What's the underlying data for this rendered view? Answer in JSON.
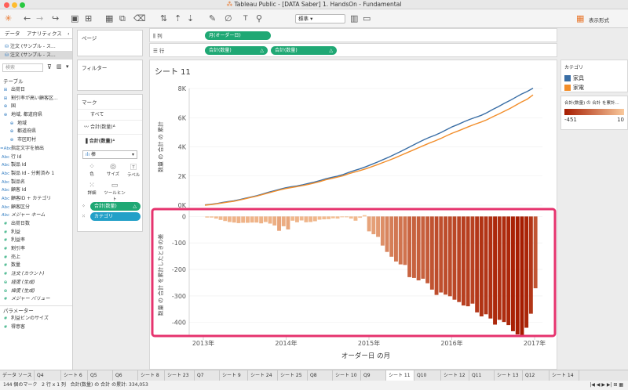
{
  "window": {
    "title": "Tableau Public - [DATA Saber] 1. HandsOn - Fundamental"
  },
  "toolbar": {
    "standard_select": "標準",
    "show_me": "表示形式"
  },
  "left_panel": {
    "tab_data": "データ",
    "tab_analytics": "アナリティクス",
    "datasources": [
      "注文 (サンプル - ス...",
      "注文 (サンプル - ス..."
    ],
    "search_placeholder": "検索",
    "tables_header": "テーブル",
    "fields": [
      {
        "icon": "⊞",
        "label": "出荷日",
        "type": "dim"
      },
      {
        "icon": "⊞",
        "label": "割引率が高い顧客区...",
        "type": "dim"
      },
      {
        "icon": "⊕",
        "label": "国",
        "type": "dim"
      },
      {
        "icon": "⊕",
        "label": "地域, 都道府県",
        "type": "dim"
      },
      {
        "icon": "⊕",
        "label": "地域",
        "type": "dim",
        "indent": true
      },
      {
        "icon": "⊕",
        "label": "都道府県",
        "type": "dim",
        "indent": true
      },
      {
        "icon": "⊕",
        "label": "市区町村",
        "type": "dim",
        "indent": true
      },
      {
        "icon": "=Abc",
        "label": "指定文字を抽出",
        "type": "dim"
      },
      {
        "icon": "Abc",
        "label": "行 Id",
        "type": "dim"
      },
      {
        "icon": "Abc",
        "label": "製品 Id",
        "type": "dim"
      },
      {
        "icon": "Abc",
        "label": "製品 Id - 分割済み 1",
        "type": "dim"
      },
      {
        "icon": "Abc",
        "label": "製品名",
        "type": "dim"
      },
      {
        "icon": "Abc",
        "label": "顧客 Id",
        "type": "dim"
      },
      {
        "icon": "Abc",
        "label": "顧客ID + カテゴリ",
        "type": "dim"
      },
      {
        "icon": "Abc",
        "label": "顧客区分",
        "type": "dim"
      },
      {
        "icon": "Abc",
        "label": "メジャー ネーム",
        "type": "dim",
        "italic": true
      },
      {
        "icon": "#",
        "label": "出荷日数",
        "type": "mea"
      },
      {
        "icon": "#",
        "label": "利益",
        "type": "mea"
      },
      {
        "icon": "#",
        "label": "利益率",
        "type": "mea"
      },
      {
        "icon": "#",
        "label": "割引率",
        "type": "mea"
      },
      {
        "icon": "#",
        "label": "売上",
        "type": "mea"
      },
      {
        "icon": "#",
        "label": "数量",
        "type": "mea"
      },
      {
        "icon": "#",
        "label": "注文 (カウント)",
        "type": "mea",
        "italic": true
      },
      {
        "icon": "⊕",
        "label": "経度 (生成)",
        "type": "mea",
        "italic": true
      },
      {
        "icon": "⊕",
        "label": "緯度 (生成)",
        "type": "mea",
        "italic": true
      },
      {
        "icon": "#",
        "label": "メジャー バリュー",
        "type": "mea",
        "italic": true
      }
    ],
    "params_header": "パラメーター",
    "params": [
      {
        "icon": "#",
        "label": "利益ビンのサイズ"
      },
      {
        "icon": "#",
        "label": "得意客"
      }
    ]
  },
  "mid_panel": {
    "pages": "ページ",
    "filters": "フィルター",
    "marks": "マーク",
    "marks_all": "すべて",
    "marks_sum1": "合計(数量)",
    "marks_sum2": "合計(数量)",
    "mark_type": "棒",
    "btn_color": "色",
    "btn_size": "サイズ",
    "btn_label": "ラベル",
    "btn_detail": "詳細",
    "btn_tooltip": "ツールヒント",
    "pill_sum": "合計(数量)",
    "pill_cat": "カテゴリ"
  },
  "shelves": {
    "columns_label": "列",
    "rows_label": "行",
    "columns_pill": "月(オーダー日)",
    "rows_pill1": "合計(数量)",
    "rows_pill2": "合計(数量)"
  },
  "sheet_title": "シート 11",
  "chart_data": [
    {
      "type": "line",
      "ylabel": "数量 の 合計 の 累計",
      "yticks": [
        "0K",
        "2K",
        "4K",
        "6K",
        "8K"
      ],
      "ylim": [
        0,
        8000
      ],
      "series": [
        {
          "name": "家具",
          "color": "#3a6ea5",
          "values": [
            20,
            60,
            110,
            180,
            240,
            300,
            380,
            470,
            560,
            650,
            760,
            880,
            980,
            1090,
            1190,
            1260,
            1320,
            1400,
            1490,
            1580,
            1690,
            1810,
            1900,
            1990,
            2100,
            2250,
            2380,
            2500,
            2640,
            2800,
            2960,
            3130,
            3300,
            3490,
            3680,
            3880,
            4080,
            4280,
            4480,
            4650,
            4800,
            4980,
            5180,
            5380,
            5540,
            5720,
            5880,
            6020,
            6160,
            6340,
            6560,
            6760,
            6980,
            7180,
            7400,
            7620,
            7800,
            8020
          ]
        },
        {
          "name": "家電",
          "color": "#f28e2b",
          "values": [
            0,
            40,
            90,
            150,
            210,
            270,
            350,
            440,
            530,
            620,
            730,
            840,
            940,
            1040,
            1140,
            1210,
            1270,
            1350,
            1430,
            1520,
            1620,
            1740,
            1830,
            1920,
            2020,
            2160,
            2270,
            2380,
            2500,
            2640,
            2780,
            2930,
            3080,
            3240,
            3410,
            3580,
            3750,
            3920,
            4090,
            4260,
            4410,
            4580,
            4760,
            4940,
            5090,
            5250,
            5410,
            5560,
            5700,
            5860,
            6060,
            6240,
            6440,
            6630,
            6850,
            7070,
            7270,
            7560
          ]
        }
      ]
    },
    {
      "type": "bar",
      "ylabel": "数量 の 合計 を累計したときの差",
      "xlabel": "オーダー日 の月",
      "xticks": [
        "2013年",
        "2014年",
        "2015年",
        "2016年",
        "2017年"
      ],
      "yticks": [
        "0",
        "-100",
        "-200",
        "-300",
        "-400"
      ],
      "ylim": [
        -451,
        10
      ],
      "values": [
        -4,
        -4,
        -8,
        -13,
        -17,
        -21,
        -23,
        -25,
        -24,
        -24,
        -23,
        -23,
        -26,
        -21,
        -27,
        -34,
        -54,
        -37,
        -49,
        -16,
        -22,
        -15,
        -22,
        -21,
        -18,
        -12,
        -11,
        -10,
        -7,
        -8,
        -2,
        -3,
        -8,
        -16,
        -5,
        5,
        -56,
        -67,
        -77,
        -110,
        -134,
        -152,
        -170,
        -181,
        -183,
        -229,
        -232,
        -241,
        -235,
        -252,
        -276,
        -296,
        -287,
        -295,
        -301,
        -314,
        -323,
        -336,
        -339,
        -329,
        -362,
        -377,
        -369,
        -385,
        -408,
        -390,
        -398,
        -410,
        -433,
        -445,
        -451,
        -420,
        -367,
        -271
      ],
      "color_range": [
        "#f9c99c",
        "#a61c00"
      ]
    }
  ],
  "legend": {
    "title": "カテゴリ",
    "items": [
      {
        "label": "家具",
        "color": "#3a6ea5"
      },
      {
        "label": "家電",
        "color": "#f28e2b"
      }
    ],
    "color_title": "合計(数量) の 合計 を累計...",
    "color_min": "-451",
    "color_max": "10"
  },
  "sheet_tabs": [
    "データ ソース",
    "Q4",
    "シート 6",
    "Q5",
    "Q6",
    "シート 8",
    "シート 23",
    "Q7",
    "シート 9",
    "シート 24",
    "シート 25",
    "Q8",
    "シート 10",
    "Q9",
    "シート 11",
    "Q10",
    "シート 12",
    "Q11",
    "シート 13",
    "Q12",
    "シート 14"
  ],
  "status": {
    "marks": "144 個のマーク",
    "rows_cols": "2 行 x 1 列",
    "sum": "合計(数量) の 合計 の累計: 334,053"
  }
}
